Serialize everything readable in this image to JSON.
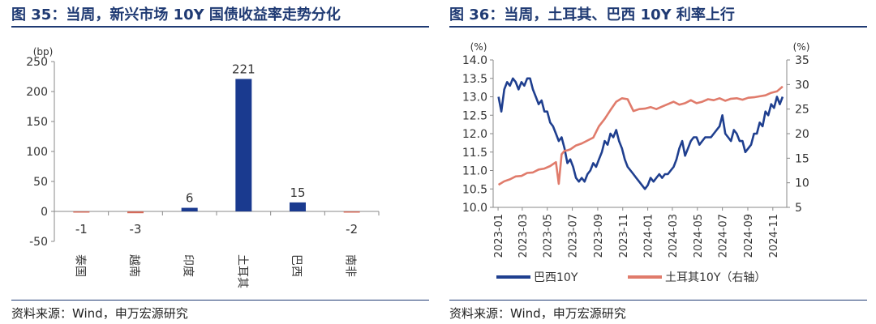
{
  "chart_data": [
    {
      "id": "fig35",
      "type": "bar",
      "title": "图 35：当周，新兴市场 10Y 国债收益率走势分化",
      "ylabel": "(bp)",
      "ylim": [
        -50,
        250
      ],
      "yticks": [
        -50,
        0,
        50,
        100,
        150,
        200,
        250
      ],
      "categories": [
        "泰国",
        "越南",
        "印度",
        "土耳其",
        "巴西",
        "南非"
      ],
      "values": [
        -1,
        -3,
        6,
        221,
        15,
        -2
      ],
      "value_labels": [
        "-1",
        "-3",
        "6",
        "221",
        "15",
        "-2"
      ],
      "bar_colors": [
        "#d46a5a",
        "#d46a5a",
        "#1a3a8f",
        "#1a3a8f",
        "#1a3a8f",
        "#d46a5a"
      ],
      "grid": false,
      "source": "资料来源：Wind，申万宏源研究"
    },
    {
      "id": "fig36",
      "type": "line",
      "title": "图 36：当周，土耳其、巴西 10Y 利率上行",
      "ylabel_left": "(%)",
      "ylabel_right": "(%)",
      "ylim_left": [
        10.0,
        14.0
      ],
      "yticks_left": [
        "10.0",
        "10.5",
        "11.0",
        "11.5",
        "12.0",
        "12.5",
        "13.0",
        "13.5",
        "14.0"
      ],
      "ylim_right": [
        5,
        35
      ],
      "yticks_right": [
        "5",
        "10",
        "15",
        "20",
        "25",
        "30",
        "35"
      ],
      "xticks": [
        "2023-01",
        "2023-03",
        "2023-05",
        "2023-07",
        "2023-09",
        "2023-11",
        "2024-01",
        "2024-03",
        "2024-05",
        "2024-07",
        "2024-09",
        "2024-11"
      ],
      "legend_position": "bottom",
      "series": [
        {
          "name": "巴西10Y",
          "axis": "left",
          "color": "#1f3f8f",
          "x": [
            "2023-01-02",
            "2023-01-09",
            "2023-01-16",
            "2023-01-23",
            "2023-01-30",
            "2023-02-06",
            "2023-02-13",
            "2023-02-20",
            "2023-02-27",
            "2023-03-06",
            "2023-03-13",
            "2023-03-20",
            "2023-03-27",
            "2023-04-03",
            "2023-04-10",
            "2023-04-17",
            "2023-04-24",
            "2023-05-01",
            "2023-05-08",
            "2023-05-15",
            "2023-05-22",
            "2023-05-29",
            "2023-06-05",
            "2023-06-12",
            "2023-06-19",
            "2023-06-26",
            "2023-07-03",
            "2023-07-10",
            "2023-07-17",
            "2023-07-24",
            "2023-07-31",
            "2023-08-07",
            "2023-08-14",
            "2023-08-21",
            "2023-08-28",
            "2023-09-04",
            "2023-09-11",
            "2023-09-18",
            "2023-09-25",
            "2023-10-02",
            "2023-10-09",
            "2023-10-16",
            "2023-10-23",
            "2023-10-30",
            "2023-11-06",
            "2023-11-13",
            "2023-11-20",
            "2023-11-27",
            "2023-12-04",
            "2023-12-11",
            "2023-12-18",
            "2023-12-25",
            "2024-01-01",
            "2024-01-08",
            "2024-01-15",
            "2024-01-22",
            "2024-01-29",
            "2024-02-05",
            "2024-02-12",
            "2024-02-19",
            "2024-02-26",
            "2024-03-04",
            "2024-03-11",
            "2024-03-18",
            "2024-03-25",
            "2024-04-01",
            "2024-04-08",
            "2024-04-15",
            "2024-04-22",
            "2024-04-29",
            "2024-05-06",
            "2024-05-13",
            "2024-05-20",
            "2024-05-27",
            "2024-06-03",
            "2024-06-10",
            "2024-06-17",
            "2024-06-24",
            "2024-07-01",
            "2024-07-08",
            "2024-07-15",
            "2024-07-22",
            "2024-07-29",
            "2024-08-05",
            "2024-08-12",
            "2024-08-19",
            "2024-08-26",
            "2024-09-02",
            "2024-09-09",
            "2024-09-16",
            "2024-09-23",
            "2024-09-30",
            "2024-10-07",
            "2024-10-14",
            "2024-10-21",
            "2024-10-28",
            "2024-11-04",
            "2024-11-11",
            "2024-11-18",
            "2024-11-25"
          ],
          "values": [
            13.0,
            12.6,
            13.2,
            13.4,
            13.3,
            13.5,
            13.4,
            13.2,
            13.4,
            13.3,
            13.5,
            13.5,
            13.2,
            13.0,
            12.8,
            12.9,
            12.6,
            12.6,
            12.3,
            12.2,
            12.0,
            11.8,
            11.9,
            11.6,
            11.2,
            11.3,
            11.1,
            10.8,
            10.7,
            10.8,
            10.7,
            10.9,
            11.0,
            11.2,
            11.1,
            11.3,
            11.5,
            11.8,
            11.7,
            12.0,
            11.9,
            12.1,
            11.8,
            11.6,
            11.3,
            11.1,
            11.0,
            10.9,
            10.8,
            10.7,
            10.6,
            10.5,
            10.6,
            10.8,
            10.7,
            10.8,
            10.9,
            10.8,
            10.9,
            10.9,
            11.0,
            11.1,
            11.3,
            11.6,
            11.8,
            11.4,
            11.6,
            11.8,
            11.9,
            11.9,
            11.7,
            11.8,
            11.9,
            11.9,
            11.9,
            12.0,
            12.1,
            12.2,
            12.5,
            12.0,
            11.9,
            11.8,
            12.1,
            12.0,
            11.8,
            11.8,
            11.5,
            11.6,
            11.7,
            12.0,
            12.0,
            12.3,
            12.2,
            12.6,
            12.5,
            12.8,
            12.7,
            13.0,
            12.8,
            13.0
          ]
        },
        {
          "name": "土耳其10Y（右轴）",
          "axis": "right",
          "color": "#e07b6b",
          "x": [
            "2023-01-02",
            "2023-01-16",
            "2023-01-30",
            "2023-02-13",
            "2023-02-27",
            "2023-03-13",
            "2023-03-27",
            "2023-04-10",
            "2023-04-24",
            "2023-05-08",
            "2023-05-22",
            "2023-05-29",
            "2023-06-05",
            "2023-06-12",
            "2023-06-19",
            "2023-06-26",
            "2023-07-03",
            "2023-07-10",
            "2023-07-24",
            "2023-08-07",
            "2023-08-21",
            "2023-09-04",
            "2023-09-18",
            "2023-10-02",
            "2023-10-16",
            "2023-10-30",
            "2023-11-13",
            "2023-11-27",
            "2023-12-11",
            "2023-12-25",
            "2024-01-08",
            "2024-01-22",
            "2024-02-05",
            "2024-02-19",
            "2024-03-04",
            "2024-03-18",
            "2024-04-01",
            "2024-04-15",
            "2024-04-29",
            "2024-05-13",
            "2024-05-27",
            "2024-06-10",
            "2024-06-24",
            "2024-07-08",
            "2024-07-22",
            "2024-08-05",
            "2024-08-19",
            "2024-09-02",
            "2024-09-16",
            "2024-09-30",
            "2024-10-14",
            "2024-10-28",
            "2024-11-11",
            "2024-11-25"
          ],
          "values": [
            9.6,
            10.3,
            10.7,
            11.3,
            11.4,
            12.0,
            12.1,
            12.7,
            12.9,
            13.4,
            14.2,
            9.8,
            15.8,
            16.5,
            16.6,
            16.8,
            17.2,
            17.6,
            18.0,
            18.6,
            19.2,
            21.5,
            23.0,
            24.8,
            26.5,
            27.2,
            27.0,
            24.6,
            25.0,
            25.1,
            25.4,
            25.0,
            25.5,
            26.0,
            26.5,
            25.9,
            26.2,
            26.8,
            26.2,
            26.5,
            27.0,
            26.8,
            27.2,
            26.7,
            27.1,
            27.2,
            26.9,
            27.3,
            27.4,
            27.6,
            27.8,
            28.3,
            28.6,
            29.6
          ]
        }
      ],
      "source": "资料来源：Wind，申万宏源研究"
    }
  ]
}
